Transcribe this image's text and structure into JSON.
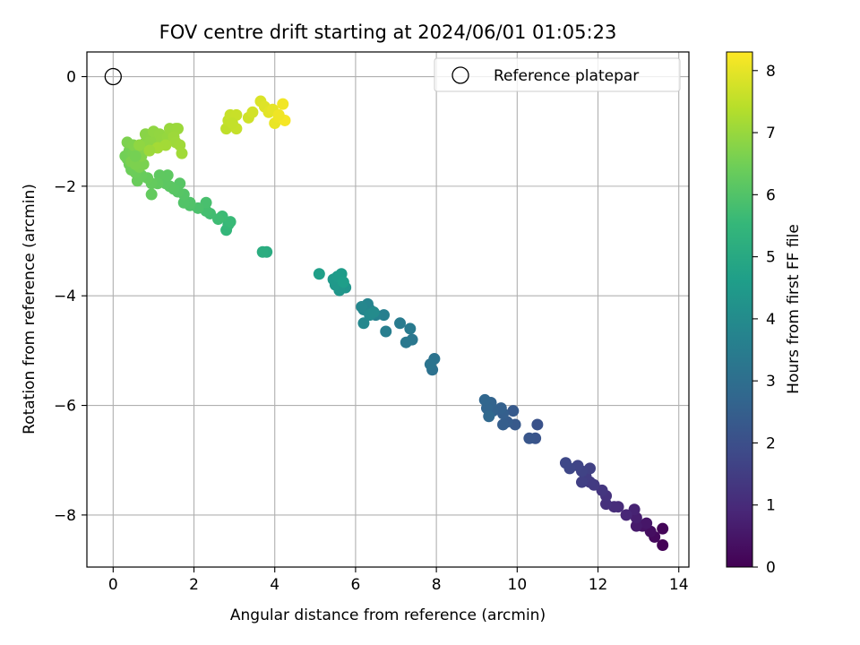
{
  "chart_data": {
    "type": "scatter",
    "title": "FOV centre drift starting at 2024/06/01 01:05:23",
    "xlabel": "Angular distance from reference (arcmin)",
    "ylabel": "Rotation from reference (arcmin)",
    "xlim": [
      -0.65,
      14.25
    ],
    "ylim": [
      -8.95,
      0.45
    ],
    "xticks": [
      0,
      2,
      4,
      6,
      8,
      10,
      12,
      14
    ],
    "yticks": [
      0,
      -2,
      -4,
      -6,
      -8
    ],
    "grid": true,
    "legend": {
      "placement": "top-right",
      "entries": [
        "Reference platepar"
      ]
    },
    "reference_point": {
      "x": 0,
      "y": 0,
      "marker": "open-circle"
    },
    "colorbar": {
      "label": "Hours from first FF file",
      "min": 0,
      "max": 8.3,
      "ticks": [
        0,
        1,
        2,
        3,
        4,
        5,
        6,
        7,
        8
      ],
      "colormap": "viridis"
    },
    "series": [
      {
        "points": [
          {
            "x": 13.6,
            "y": -8.55,
            "c": 0.05
          },
          {
            "x": 13.6,
            "y": -8.25,
            "c": 0.1
          },
          {
            "x": 13.4,
            "y": -8.4,
            "c": 0.2
          },
          {
            "x": 13.3,
            "y": -8.3,
            "c": 0.3
          },
          {
            "x": 13.1,
            "y": -8.2,
            "c": 0.4
          },
          {
            "x": 13.2,
            "y": -8.15,
            "c": 0.5
          },
          {
            "x": 12.95,
            "y": -8.2,
            "c": 0.6
          },
          {
            "x": 12.95,
            "y": -8.05,
            "c": 0.7
          },
          {
            "x": 12.9,
            "y": -7.9,
            "c": 0.8
          },
          {
            "x": 12.7,
            "y": -8.0,
            "c": 0.9
          },
          {
            "x": 12.5,
            "y": -7.85,
            "c": 1.0
          },
          {
            "x": 12.4,
            "y": -7.85,
            "c": 1.05
          },
          {
            "x": 12.2,
            "y": -7.8,
            "c": 1.15
          },
          {
            "x": 12.2,
            "y": -7.65,
            "c": 1.2
          },
          {
            "x": 12.1,
            "y": -7.55,
            "c": 1.3
          },
          {
            "x": 11.9,
            "y": -7.45,
            "c": 1.4
          },
          {
            "x": 11.8,
            "y": -7.4,
            "c": 1.45
          },
          {
            "x": 11.7,
            "y": -7.3,
            "c": 1.5
          },
          {
            "x": 11.6,
            "y": -7.4,
            "c": 1.55
          },
          {
            "x": 11.8,
            "y": -7.15,
            "c": 1.6
          },
          {
            "x": 11.6,
            "y": -7.2,
            "c": 1.65
          },
          {
            "x": 11.5,
            "y": -7.1,
            "c": 1.7
          },
          {
            "x": 11.3,
            "y": -7.15,
            "c": 1.75
          },
          {
            "x": 11.2,
            "y": -7.05,
            "c": 1.8
          },
          {
            "x": 10.5,
            "y": -6.35,
            "c": 2.1
          },
          {
            "x": 10.45,
            "y": -6.6,
            "c": 2.15
          },
          {
            "x": 10.3,
            "y": -6.6,
            "c": 2.2
          },
          {
            "x": 9.95,
            "y": -6.35,
            "c": 2.3
          },
          {
            "x": 9.9,
            "y": -6.1,
            "c": 2.35
          },
          {
            "x": 9.75,
            "y": -6.3,
            "c": 2.4
          },
          {
            "x": 9.65,
            "y": -6.35,
            "c": 2.45
          },
          {
            "x": 9.65,
            "y": -6.15,
            "c": 2.5
          },
          {
            "x": 9.6,
            "y": -6.05,
            "c": 2.55
          },
          {
            "x": 9.4,
            "y": -6.1,
            "c": 2.6
          },
          {
            "x": 9.35,
            "y": -5.95,
            "c": 2.65
          },
          {
            "x": 9.25,
            "y": -6.05,
            "c": 2.7
          },
          {
            "x": 9.2,
            "y": -5.9,
            "c": 2.75
          },
          {
            "x": 9.3,
            "y": -6.2,
            "c": 2.8
          },
          {
            "x": 7.9,
            "y": -5.35,
            "c": 3.1
          },
          {
            "x": 7.95,
            "y": -5.15,
            "c": 3.15
          },
          {
            "x": 7.85,
            "y": -5.25,
            "c": 3.2
          },
          {
            "x": 7.4,
            "y": -4.8,
            "c": 3.3
          },
          {
            "x": 7.25,
            "y": -4.85,
            "c": 3.35
          },
          {
            "x": 7.35,
            "y": -4.6,
            "c": 3.4
          },
          {
            "x": 7.1,
            "y": -4.5,
            "c": 3.45
          },
          {
            "x": 6.75,
            "y": -4.65,
            "c": 3.55
          },
          {
            "x": 6.7,
            "y": -4.35,
            "c": 3.6
          },
          {
            "x": 6.5,
            "y": -4.35,
            "c": 3.65
          },
          {
            "x": 6.35,
            "y": -4.25,
            "c": 3.7
          },
          {
            "x": 6.3,
            "y": -4.15,
            "c": 3.75
          },
          {
            "x": 6.2,
            "y": -4.25,
            "c": 3.8
          },
          {
            "x": 6.15,
            "y": -4.2,
            "c": 3.85
          },
          {
            "x": 6.2,
            "y": -4.5,
            "c": 3.9
          },
          {
            "x": 6.35,
            "y": -4.35,
            "c": 3.95
          },
          {
            "x": 6.45,
            "y": -4.3,
            "c": 4.0
          },
          {
            "x": 5.75,
            "y": -3.85,
            "c": 4.3
          },
          {
            "x": 5.6,
            "y": -3.9,
            "c": 4.35
          },
          {
            "x": 5.5,
            "y": -3.8,
            "c": 4.4
          },
          {
            "x": 5.45,
            "y": -3.7,
            "c": 4.45
          },
          {
            "x": 5.55,
            "y": -3.65,
            "c": 4.5
          },
          {
            "x": 5.65,
            "y": -3.6,
            "c": 4.55
          },
          {
            "x": 5.1,
            "y": -3.6,
            "c": 4.65
          },
          {
            "x": 5.7,
            "y": -3.75,
            "c": 4.6
          },
          {
            "x": 3.8,
            "y": -3.2,
            "c": 5.1
          },
          {
            "x": 3.7,
            "y": -3.2,
            "c": 5.15
          },
          {
            "x": 2.8,
            "y": -2.8,
            "c": 5.5
          },
          {
            "x": 2.85,
            "y": -2.7,
            "c": 5.55
          },
          {
            "x": 2.9,
            "y": -2.65,
            "c": 5.6
          },
          {
            "x": 2.7,
            "y": -2.55,
            "c": 5.65
          },
          {
            "x": 2.6,
            "y": -2.6,
            "c": 5.7
          },
          {
            "x": 2.4,
            "y": -2.5,
            "c": 5.75
          },
          {
            "x": 2.3,
            "y": -2.45,
            "c": 5.8
          },
          {
            "x": 2.3,
            "y": -2.3,
            "c": 5.85
          },
          {
            "x": 2.1,
            "y": -2.4,
            "c": 5.9
          },
          {
            "x": 1.9,
            "y": -2.35,
            "c": 5.95
          },
          {
            "x": 1.9,
            "y": -2.3,
            "c": 5.98
          },
          {
            "x": 1.75,
            "y": -2.3,
            "c": 6.0
          },
          {
            "x": 1.75,
            "y": -2.15,
            "c": 6.05
          },
          {
            "x": 1.6,
            "y": -2.1,
            "c": 6.08
          },
          {
            "x": 1.65,
            "y": -1.95,
            "c": 6.1
          },
          {
            "x": 1.5,
            "y": -2.05,
            "c": 6.12
          },
          {
            "x": 1.4,
            "y": -2.0,
            "c": 6.15
          },
          {
            "x": 1.3,
            "y": -1.95,
            "c": 6.18
          },
          {
            "x": 1.35,
            "y": -1.8,
            "c": 6.2
          },
          {
            "x": 1.15,
            "y": -1.8,
            "c": 6.22
          },
          {
            "x": 1.1,
            "y": -1.95,
            "c": 6.25
          },
          {
            "x": 0.95,
            "y": -2.15,
            "c": 6.28
          },
          {
            "x": 0.95,
            "y": -1.95,
            "c": 6.3
          },
          {
            "x": 0.85,
            "y": -1.85,
            "c": 6.33
          },
          {
            "x": 0.7,
            "y": -1.8,
            "c": 6.36
          },
          {
            "x": 0.6,
            "y": -1.9,
            "c": 6.38
          },
          {
            "x": 0.55,
            "y": -1.75,
            "c": 6.4
          },
          {
            "x": 0.45,
            "y": -1.7,
            "c": 6.42
          },
          {
            "x": 0.4,
            "y": -1.6,
            "c": 6.45
          },
          {
            "x": 0.35,
            "y": -1.5,
            "c": 6.48
          },
          {
            "x": 0.3,
            "y": -1.45,
            "c": 6.5
          },
          {
            "x": 0.4,
            "y": -1.35,
            "c": 6.52
          },
          {
            "x": 0.5,
            "y": -1.4,
            "c": 6.55
          },
          {
            "x": 0.6,
            "y": -1.55,
            "c": 6.58
          },
          {
            "x": 0.65,
            "y": -1.65,
            "c": 6.6
          },
          {
            "x": 0.75,
            "y": -1.6,
            "c": 6.62
          },
          {
            "x": 0.45,
            "y": -1.55,
            "c": 6.63
          },
          {
            "x": 0.55,
            "y": -1.6,
            "c": 6.64
          },
          {
            "x": 0.35,
            "y": -1.2,
            "c": 6.65
          },
          {
            "x": 0.5,
            "y": -1.25,
            "c": 6.68
          },
          {
            "x": 0.6,
            "y": -1.3,
            "c": 6.7
          },
          {
            "x": 0.7,
            "y": -1.45,
            "c": 6.72
          },
          {
            "x": 0.75,
            "y": -1.3,
            "c": 6.75
          },
          {
            "x": 0.8,
            "y": -1.2,
            "c": 6.78
          },
          {
            "x": 0.8,
            "y": -1.05,
            "c": 6.8
          },
          {
            "x": 0.95,
            "y": -1.1,
            "c": 6.82
          },
          {
            "x": 0.9,
            "y": -1.2,
            "c": 6.84
          },
          {
            "x": 1.0,
            "y": -1.25,
            "c": 6.86
          },
          {
            "x": 1.05,
            "y": -1.15,
            "c": 6.88
          },
          {
            "x": 1.0,
            "y": -1.0,
            "c": 6.9
          },
          {
            "x": 1.15,
            "y": -1.05,
            "c": 6.92
          },
          {
            "x": 1.2,
            "y": -1.15,
            "c": 6.94
          },
          {
            "x": 1.35,
            "y": -1.1,
            "c": 6.96
          },
          {
            "x": 1.45,
            "y": -1.0,
            "c": 6.98
          },
          {
            "x": 1.4,
            "y": -0.95,
            "c": 7.0
          },
          {
            "x": 1.55,
            "y": -0.95,
            "c": 7.02
          },
          {
            "x": 1.6,
            "y": -0.95,
            "c": 7.04
          },
          {
            "x": 1.5,
            "y": -1.1,
            "c": 7.06
          },
          {
            "x": 1.55,
            "y": -1.2,
            "c": 7.08
          },
          {
            "x": 1.65,
            "y": -1.25,
            "c": 7.1
          },
          {
            "x": 1.7,
            "y": -1.4,
            "c": 7.12
          },
          {
            "x": 1.3,
            "y": -1.25,
            "c": 7.14
          },
          {
            "x": 1.1,
            "y": -1.3,
            "c": 7.16
          },
          {
            "x": 0.9,
            "y": -1.35,
            "c": 7.05
          },
          {
            "x": 0.65,
            "y": -1.25,
            "c": 6.9
          },
          {
            "x": 0.55,
            "y": -1.45,
            "c": 6.55
          },
          {
            "x": 2.8,
            "y": -0.95,
            "c": 7.5
          },
          {
            "x": 2.85,
            "y": -0.8,
            "c": 7.55
          },
          {
            "x": 2.9,
            "y": -0.7,
            "c": 7.6
          },
          {
            "x": 3.05,
            "y": -0.7,
            "c": 7.62
          },
          {
            "x": 3.05,
            "y": -0.95,
            "c": 7.58
          },
          {
            "x": 2.95,
            "y": -0.85,
            "c": 7.56
          },
          {
            "x": 3.35,
            "y": -0.75,
            "c": 7.7
          },
          {
            "x": 3.45,
            "y": -0.65,
            "c": 7.75
          },
          {
            "x": 3.65,
            "y": -0.45,
            "c": 7.85
          },
          {
            "x": 3.75,
            "y": -0.55,
            "c": 7.9
          },
          {
            "x": 3.85,
            "y": -0.65,
            "c": 7.95
          },
          {
            "x": 3.95,
            "y": -0.6,
            "c": 8.0
          },
          {
            "x": 4.0,
            "y": -0.85,
            "c": 8.05
          },
          {
            "x": 4.1,
            "y": -0.75,
            "c": 8.1
          },
          {
            "x": 4.2,
            "y": -0.5,
            "c": 8.15
          },
          {
            "x": 4.25,
            "y": -0.8,
            "c": 8.2
          },
          {
            "x": 4.1,
            "y": -0.7,
            "c": 8.12
          }
        ]
      }
    ]
  },
  "colors": {
    "grid": "#b0b0b0",
    "axes": "#000000",
    "legend_border": "#cccccc"
  }
}
